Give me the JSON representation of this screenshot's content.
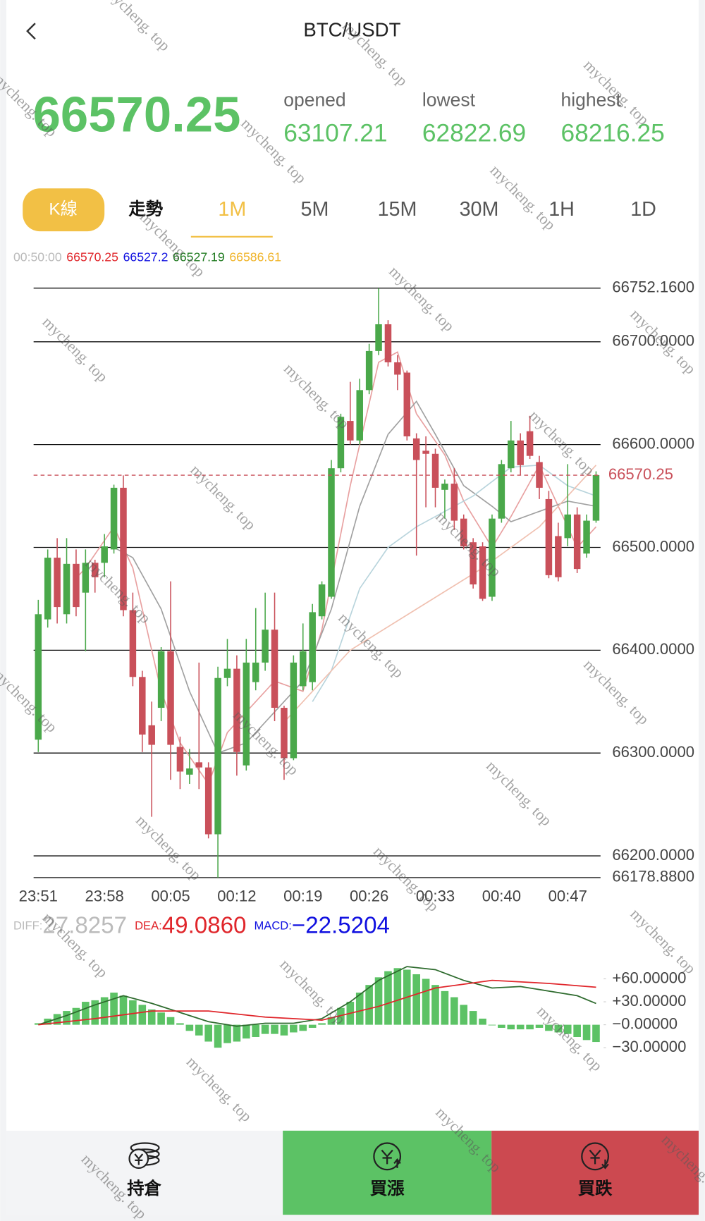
{
  "header": {
    "title": "BTC/USDT",
    "price": "66570.25",
    "stats": [
      {
        "label": "opened",
        "value": "63107.21"
      },
      {
        "label": "lowest",
        "value": "62822.69"
      },
      {
        "label": "highest",
        "value": "68216.25"
      }
    ]
  },
  "tabs": [
    "K線",
    "走勢",
    "1M",
    "5M",
    "15M",
    "30M",
    "1H",
    "1D"
  ],
  "legend": {
    "time": "00:50:00",
    "values": [
      {
        "text": "66570.25",
        "color": "#e0262b"
      },
      {
        "text": "66527.2",
        "color": "#1010e0"
      },
      {
        "text": "66527.19",
        "color": "#1f7a1f"
      },
      {
        "text": "66586.61",
        "color": "#f0b429"
      }
    ]
  },
  "chart_data": [
    {
      "type": "candlestick",
      "up_color": "#4aa84a",
      "down_color": "#c9505a",
      "categories": [
        "23:51",
        null,
        null,
        null,
        null,
        null,
        null,
        "23:58",
        null,
        null,
        null,
        null,
        null,
        null,
        "00:05",
        null,
        null,
        null,
        null,
        null,
        null,
        "00:12",
        null,
        null,
        null,
        null,
        null,
        null,
        "00:19",
        null,
        null,
        null,
        null,
        null,
        null,
        "00:26",
        null,
        null,
        null,
        null,
        null,
        null,
        "00:33",
        null,
        null,
        null,
        null,
        null,
        null,
        "00:40",
        null,
        null,
        null,
        null,
        null,
        null,
        "00:47",
        null,
        null,
        null
      ],
      "open": [
        66313,
        66430,
        66490,
        66435,
        66484,
        66456,
        66485,
        66485,
        66498,
        66558,
        66439,
        66374,
        66327,
        66344,
        66399,
        66306,
        66279,
        66291,
        66286,
        66221,
        66373,
        66382,
        66288,
        66369,
        66388,
        66420,
        66344,
        66295,
        66365,
        66369,
        66433,
        66452,
        66577,
        66623,
        66604,
        66653,
        66691,
        66717,
        66680,
        66670,
        66606,
        66594,
        66591,
        66556,
        66562,
        66528,
        66505,
        66501,
        66452,
        66528,
        66577,
        66604,
        66613,
        66583,
        66547,
        66511,
        66509,
        66532,
        66494,
        66526
      ],
      "high": [
        66449,
        66498,
        66509,
        66509,
        66498,
        66498,
        66488,
        66513,
        66561,
        66570,
        66456,
        66380,
        66350,
        66403,
        66467,
        66316,
        66304,
        66388,
        66291,
        66384,
        66411,
        66395,
        66411,
        66441,
        66456,
        66456,
        66346,
        66395,
        66426,
        66445,
        66467,
        66585,
        66630,
        66661,
        66664,
        66698,
        66752,
        66721,
        66687,
        66672,
        66611,
        66608,
        66596,
        66566,
        66577,
        66532,
        66509,
        66505,
        66532,
        66585,
        66623,
        66611,
        66628,
        66589,
        66555,
        66524,
        66581,
        66539,
        66532,
        66574
      ],
      "low": [
        66301,
        66422,
        66426,
        66426,
        66433,
        66399,
        66456,
        66471,
        66494,
        66433,
        66365,
        66301,
        66238,
        66331,
        66274,
        66265,
        66270,
        66265,
        66217,
        66178.88,
        66365,
        66278,
        66283,
        66361,
        66380,
        66331,
        66274,
        66293,
        66361,
        66361,
        66430,
        66450,
        66573,
        66600,
        66600,
        66649,
        66687,
        66676,
        66653,
        66604,
        66492,
        66539,
        66539,
        66528,
        66517,
        66498,
        66460,
        66448,
        66448,
        66524,
        66573,
        66570,
        66586,
        66547,
        66470,
        66467,
        66501,
        66475,
        66490,
        66524
      ],
      "close": [
        66435,
        66490,
        66442,
        66484,
        66442,
        66485,
        66471,
        66501,
        66558,
        66439,
        66374,
        66318,
        66308,
        66399,
        66308,
        66282,
        66285,
        66286,
        66221,
        66373,
        66382,
        66301,
        66388,
        66388,
        66420,
        66344,
        66295,
        66388,
        66399,
        66437,
        66464,
        66577,
        66627,
        66604,
        66653,
        66691,
        66717,
        66680,
        66668,
        66608,
        66585,
        66591,
        66558,
        66562,
        66526,
        66501,
        66464,
        66450,
        66528,
        66581,
        66604,
        66580,
        66589,
        66558,
        66473,
        66471,
        66532,
        66479,
        66526,
        66570.25
      ],
      "ma_lines": [
        {
          "color": "#e8a0a0",
          "x": [
            4,
            5,
            8,
            10,
            13,
            15,
            18,
            20,
            25,
            28,
            30,
            33,
            36,
            38,
            40,
            43,
            45,
            48,
            50,
            53,
            55,
            57,
            59
          ],
          "values": [
            66470,
            66480,
            66520,
            66480,
            66360,
            66310,
            66270,
            66320,
            66370,
            66360,
            66420,
            66560,
            66680,
            66690,
            66630,
            66590,
            66545,
            66500,
            66530,
            66580,
            66540,
            66500,
            66520
          ]
        },
        {
          "color": "#a0a0a0",
          "x": [
            8,
            10,
            13,
            16,
            19,
            22,
            25,
            28,
            31,
            34,
            37,
            40,
            42,
            45,
            48,
            50,
            53,
            56,
            59
          ],
          "values": [
            66500,
            66490,
            66440,
            66360,
            66300,
            66310,
            66340,
            66370,
            66440,
            66540,
            66610,
            66642,
            66610,
            66560,
            66540,
            66525,
            66535,
            66545,
            66540
          ]
        },
        {
          "color": "#b8d4dc",
          "x": [
            29,
            31,
            34,
            37,
            40,
            43,
            46,
            50,
            53,
            56,
            59
          ],
          "values": [
            66350,
            66380,
            66460,
            66500,
            66520,
            66535,
            66550,
            66578,
            66580,
            66560,
            66550
          ]
        },
        {
          "color": "#f0c0b0",
          "x": [
            26,
            33,
            40,
            47,
            53,
            59
          ],
          "values": [
            66330,
            66400,
            66440,
            66480,
            66520,
            66580
          ]
        }
      ],
      "ylim": [
        66178.88,
        66752.16
      ],
      "yticks": [
        {
          "value": 66752.16,
          "label": "66752.1600"
        },
        {
          "value": 66700,
          "label": "66700.0000"
        },
        {
          "value": 66600,
          "label": "66600.0000"
        },
        {
          "value": 66500,
          "label": "66500.0000"
        },
        {
          "value": 66400,
          "label": "66400.0000"
        },
        {
          "value": 66300,
          "label": "66300.0000"
        },
        {
          "value": 66200,
          "label": "66200.0000"
        },
        {
          "value": 66178.88,
          "label": "66178.8800"
        }
      ],
      "last_price_color": "#c9505a"
    },
    {
      "type": "macd",
      "bar_color": "#5cc265",
      "readouts": [
        {
          "name": "DIFF:",
          "text": "27.8257",
          "color": "#bbbbbb"
        },
        {
          "name": "DEA:",
          "text": "49.0860",
          "color": "#e0262b"
        },
        {
          "name": "MACD:",
          "text": "−22.5204",
          "color": "#1010e0"
        }
      ],
      "histogram": [
        2,
        8,
        14,
        18,
        22,
        30,
        32,
        36,
        42,
        38,
        32,
        26,
        20,
        16,
        10,
        2,
        -8,
        -14,
        -22,
        -30,
        -24,
        -22,
        -18,
        -16,
        -12,
        -12,
        -14,
        -10,
        -8,
        -4,
        2,
        10,
        22,
        30,
        42,
        52,
        62,
        70,
        74,
        72,
        66,
        60,
        52,
        44,
        36,
        26,
        18,
        8,
        0,
        -4,
        -6,
        -6,
        -6,
        -4,
        -8,
        -10,
        -12,
        -16,
        -20,
        -22.5204
      ],
      "diff": {
        "color": "#2e6b2e",
        "x": [
          0,
          3,
          6,
          9,
          12,
          15,
          18,
          21,
          24,
          27,
          30,
          33,
          36,
          39,
          42,
          45,
          48,
          51,
          54,
          57,
          59
        ],
        "values": [
          0,
          12,
          26,
          38,
          28,
          16,
          4,
          -2,
          2,
          2,
          8,
          30,
          58,
          76,
          72,
          58,
          48,
          50,
          44,
          38,
          27.8257
        ]
      },
      "dea": {
        "color": "#e0262b",
        "x": [
          0,
          6,
          12,
          18,
          24,
          30,
          36,
          42,
          48,
          54,
          59
        ],
        "values": [
          0,
          8,
          18,
          18,
          10,
          6,
          24,
          48,
          58,
          54,
          49.086
        ]
      },
      "ylim": [
        -44.8,
        87.5
      ],
      "yticks": [
        {
          "value": 60,
          "label": "+60.00000"
        },
        {
          "value": 30,
          "label": "+30.00000"
        },
        {
          "value": 0,
          "label": "−0.00000"
        },
        {
          "value": -30,
          "label": "−30.00000"
        }
      ]
    }
  ],
  "actions": [
    "持倉",
    "買漲",
    "買跌"
  ],
  "watermark": "mycheng. top"
}
